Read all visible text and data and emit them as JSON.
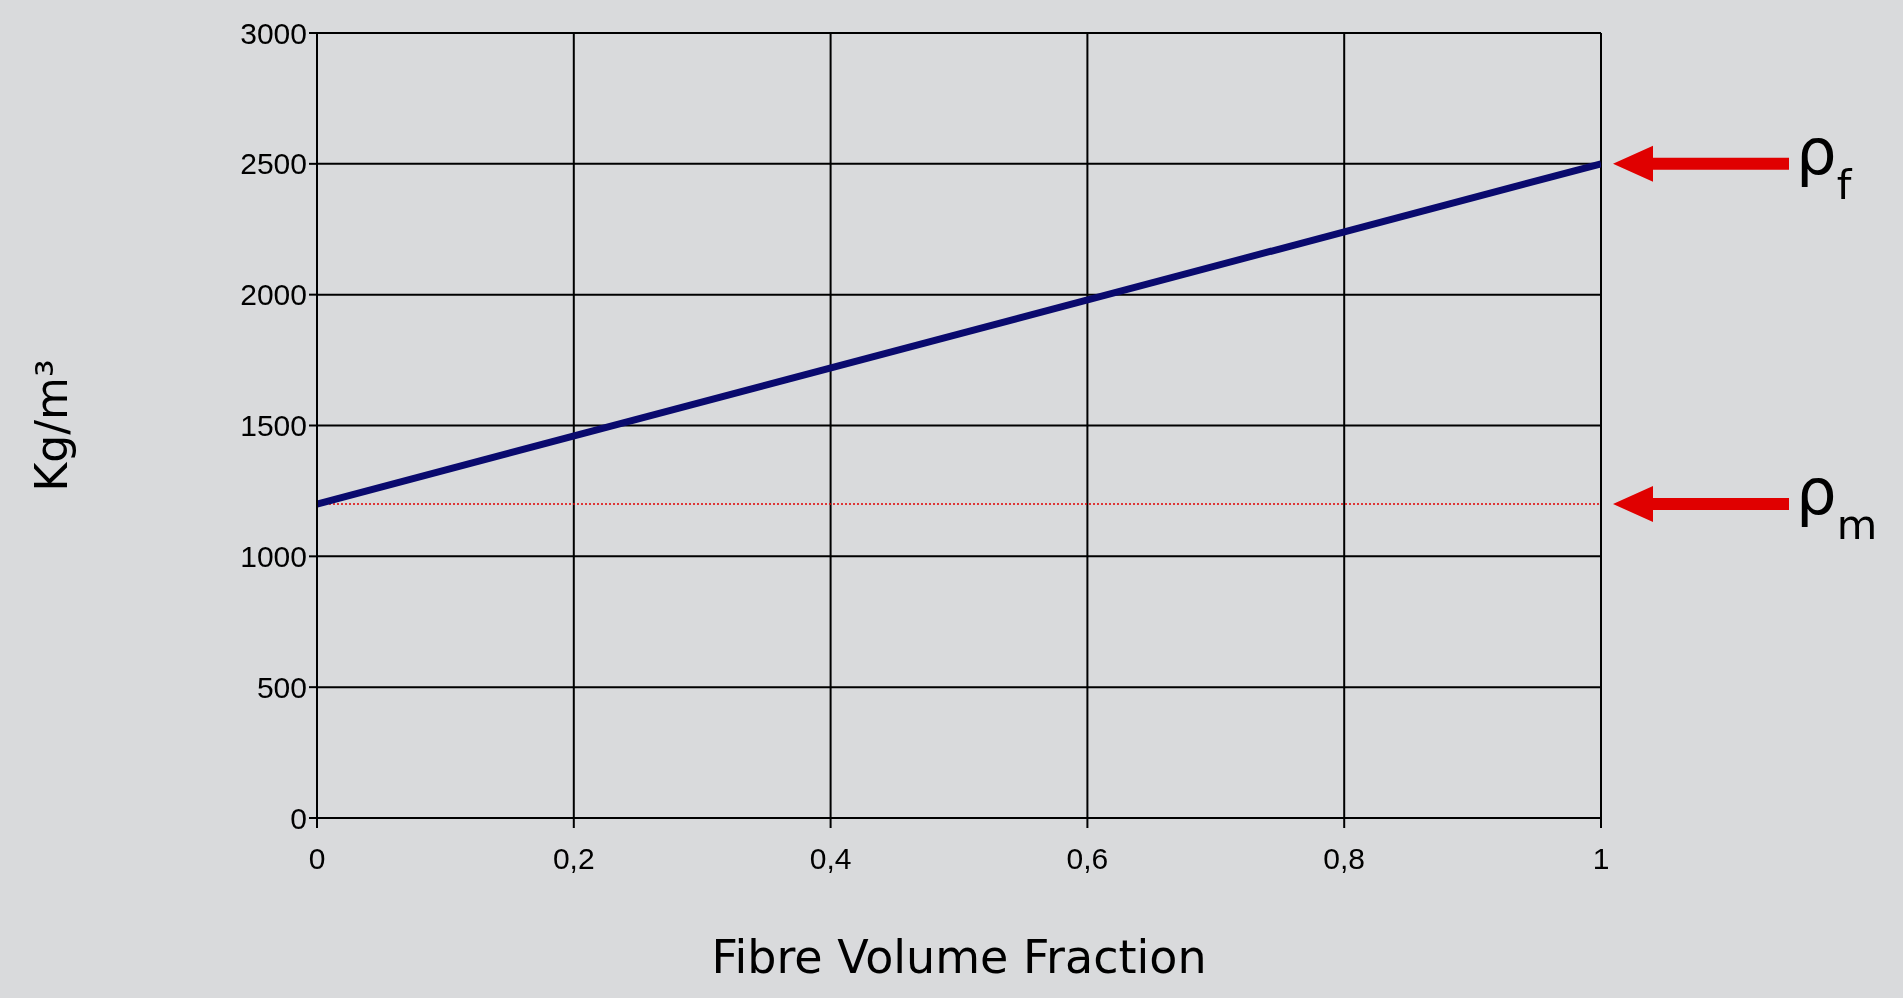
{
  "chart_data": {
    "type": "line",
    "xlabel": "Fibre Volume Fraction",
    "ylabel": "Kg/m³",
    "x": [
      0,
      1
    ],
    "series": [
      {
        "color": "#0a0a6e",
        "values": [
          1200,
          2500
        ]
      }
    ],
    "xlim": [
      0,
      1
    ],
    "xticks": [
      0,
      {
        "value": 0.2,
        "label": "0,2"
      },
      {
        "value": 0.4,
        "label": "0,4"
      },
      {
        "value": 0.6,
        "label": "0,6"
      },
      {
        "value": 0.8,
        "label": "0,8"
      },
      1
    ],
    "ylim": [
      0,
      3000
    ],
    "yticks": [
      0,
      500,
      1000,
      1500,
      2000,
      2500,
      3000
    ],
    "grid": true,
    "marker": "none",
    "line_style": "solid",
    "ref_lines": [
      {
        "axis": "y",
        "value": 1200,
        "color": "#e00000",
        "line_style": "dotted"
      }
    ],
    "annotations": [
      "ρ$_{f}$",
      "ρ$_{m}$"
    ]
  }
}
